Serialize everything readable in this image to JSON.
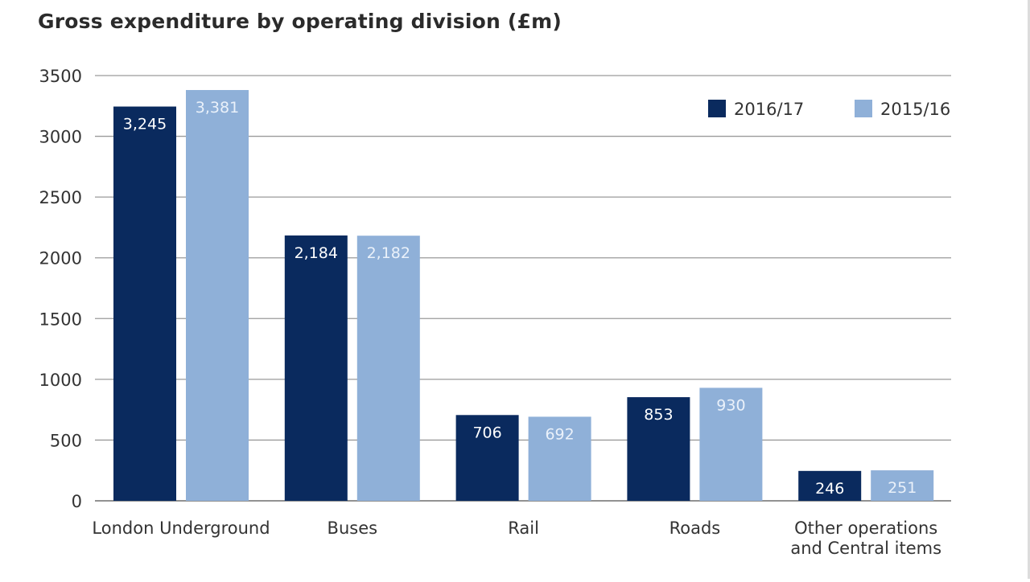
{
  "chart_data": {
    "type": "bar",
    "title": "Gross expenditure by operating division (£m)",
    "xlabel": "",
    "ylabel": "",
    "categories": [
      "London Underground",
      "Buses",
      "Rail",
      "Roads",
      "Other operations and Central items"
    ],
    "category_lines": [
      [
        "London Underground"
      ],
      [
        "Buses"
      ],
      [
        "Rail"
      ],
      [
        "Roads"
      ],
      [
        "Other operations",
        "and Central items"
      ]
    ],
    "series": [
      {
        "name": "2016/17",
        "values": [
          3245,
          2184,
          706,
          853,
          246
        ],
        "labels": [
          "3,245",
          "2,184",
          "706",
          "853",
          "246"
        ],
        "color": "#0a2a5e"
      },
      {
        "name": "2015/16",
        "values": [
          3381,
          2182,
          692,
          930,
          251
        ],
        "labels": [
          "3,381",
          "2,182",
          "692",
          "930",
          "251"
        ],
        "color": "#8fb0d8"
      }
    ],
    "ylim": [
      0,
      3500
    ],
    "yticks": [
      0,
      500,
      1000,
      1500,
      2000,
      2500,
      3000,
      3500
    ],
    "grid": true,
    "legend_position": "top-right"
  }
}
